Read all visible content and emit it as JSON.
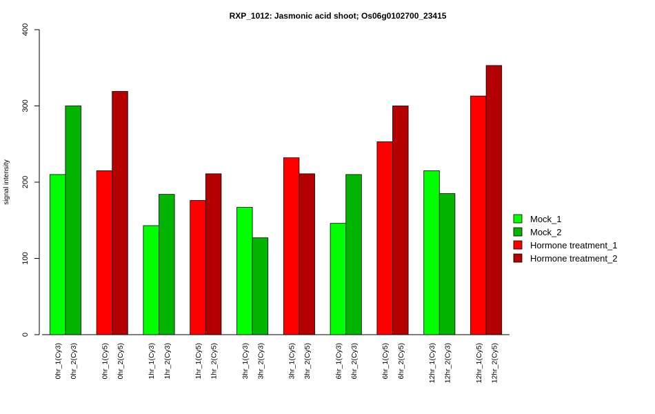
{
  "chart_data": {
    "type": "bar",
    "title": "RXP_1012: Jasmonic acid shoot; Os06g0102700_23415",
    "ylabel": "signal intensity",
    "xlabel": "",
    "ylim": [
      0,
      400
    ],
    "yticks": [
      0,
      100,
      200,
      300,
      400
    ],
    "groups": [
      {
        "color": "#00ff00",
        "bars": [
          {
            "label": "0hr_1(Cy3)",
            "value": 210
          },
          {
            "label": "0hr_2(Cy3)",
            "value": 300
          }
        ]
      },
      {
        "color": "#ff0000",
        "bars": [
          {
            "label": "0hr_1(Cy5)",
            "value": 215
          },
          {
            "label": "0hr_2(Cy5)",
            "value": 319
          }
        ]
      },
      {
        "color": "#00ff00",
        "bars": [
          {
            "label": "1hr_1(Cy3)",
            "value": 143
          },
          {
            "label": "1hr_2(Cy3)",
            "value": 184
          }
        ]
      },
      {
        "color": "#ff0000",
        "bars": [
          {
            "label": "1hr_1(Cy5)",
            "value": 176
          },
          {
            "label": "1hr_2(Cy5)",
            "value": 211
          }
        ]
      },
      {
        "color": "#00ff00",
        "bars": [
          {
            "label": "3hr_1(Cy3)",
            "value": 167
          },
          {
            "label": "3hr_2(Cy3)",
            "value": 127
          }
        ]
      },
      {
        "color": "#ff0000",
        "bars": [
          {
            "label": "3hr_1(Cy5)",
            "value": 232
          },
          {
            "label": "3hr_2(Cy5)",
            "value": 211
          }
        ]
      },
      {
        "color": "#00ff00",
        "bars": [
          {
            "label": "6hr_1(Cy3)",
            "value": 146
          },
          {
            "label": "6hr_2(Cy3)",
            "value": 210
          }
        ]
      },
      {
        "color": "#ff0000",
        "bars": [
          {
            "label": "6hr_1(Cy5)",
            "value": 253
          },
          {
            "label": "6hr_2(Cy5)",
            "value": 300
          }
        ]
      },
      {
        "color": "#00ff00",
        "bars": [
          {
            "label": "12hr_1(Cy3)",
            "value": 215
          },
          {
            "label": "12hr_2(Cy3)",
            "value": 185
          }
        ]
      },
      {
        "color": "#ff0000",
        "bars": [
          {
            "label": "12hr_1(Cy5)",
            "value": 313
          },
          {
            "label": "12hr_2(Cy5)",
            "value": 353
          }
        ]
      }
    ],
    "series": [
      {
        "name": "Mock_1",
        "color": "#00ff00"
      },
      {
        "name": "Mock_2",
        "color": "#00b400"
      },
      {
        "name": "Hormone treatment_1",
        "color": "#ff0000"
      },
      {
        "name": "Hormone treatment_2",
        "color": "#b40000"
      }
    ],
    "legend_position": "right",
    "grid": false
  }
}
